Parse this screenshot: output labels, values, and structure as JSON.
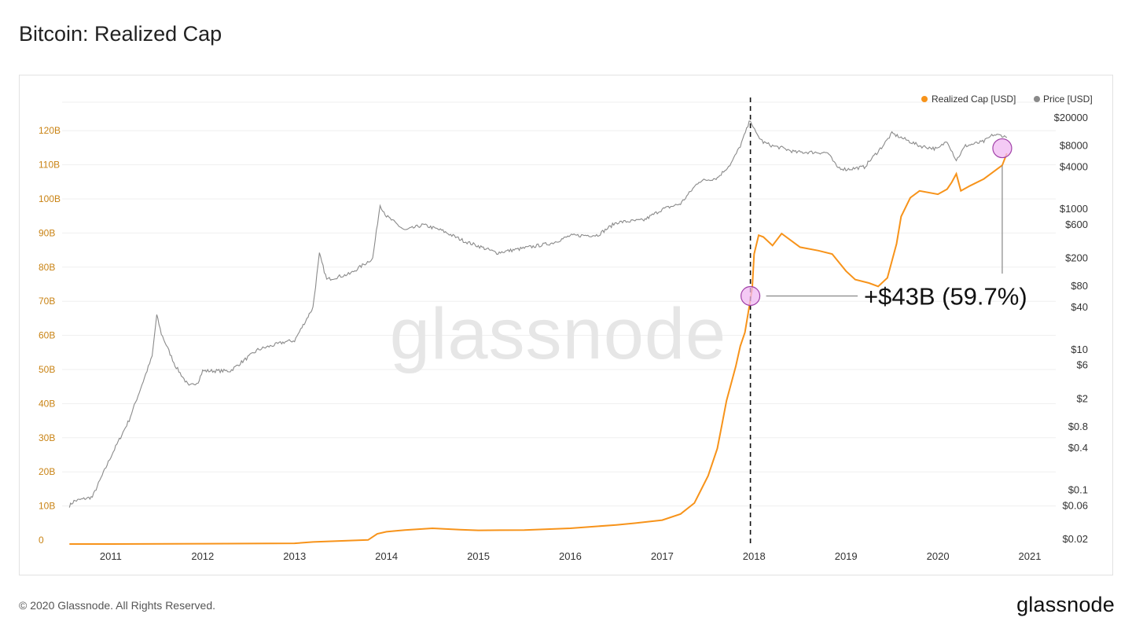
{
  "header": {
    "title": "Bitcoin: Realized Cap"
  },
  "footer": {
    "copyright": "© 2020 Glassnode. All Rights Reserved.",
    "logo": "glassnode"
  },
  "watermark": "glassnode",
  "annotation": {
    "text": "+$43B (59.7%)"
  },
  "colors": {
    "realized": "#f7931a",
    "price": "#8a8a8a",
    "marker_fill": "#f0b8f2",
    "marker_stroke": "#a040a8",
    "left_axis_text": "#c98314"
  },
  "icons": [
    "legend-dot-icon",
    "circle-marker-icon"
  ],
  "chart_data": {
    "type": "line",
    "title": "Bitcoin: Realized Cap",
    "legend": {
      "placement": "top-right",
      "entries": [
        "Realized Cap [USD]",
        "Price [USD]"
      ]
    },
    "x_ticks": [
      "2011",
      "2012",
      "2013",
      "2014",
      "2015",
      "2016",
      "2017",
      "2018",
      "2019",
      "2020",
      "2021"
    ],
    "y_left": {
      "ticks": [
        "0",
        "10B",
        "20B",
        "30B",
        "40B",
        "50B",
        "60B",
        "70B",
        "80B",
        "90B",
        "100B",
        "110B",
        "120B"
      ],
      "range": [
        0,
        130
      ]
    },
    "y_right": {
      "scale": "log",
      "ticks": [
        "$20000",
        "$8000",
        "$4000",
        "$1000",
        "$600",
        "$200",
        "$80",
        "$40",
        "$10",
        "$6",
        "$2",
        "$0.8",
        "$0.4",
        "$0.1",
        "$0.06",
        "$0.02"
      ]
    },
    "event_line": {
      "x": 2017.96,
      "style": "dashed"
    },
    "markers": [
      {
        "x": 2017.96,
        "y": 72.7
      },
      {
        "x": 2020.7,
        "y": 116.0
      }
    ],
    "series": [
      {
        "name": "Realized Cap [USD]",
        "axis": "left",
        "unit": "B USD",
        "x": [
          2010.55,
          2011.0,
          2012.0,
          2013.0,
          2013.2,
          2013.8,
          2013.9,
          2014.0,
          2014.2,
          2014.5,
          2014.8,
          2015.0,
          2015.5,
          2016.0,
          2016.5,
          2016.7,
          2017.0,
          2017.2,
          2017.35,
          2017.5,
          2017.6,
          2017.65,
          2017.7,
          2017.8,
          2017.85,
          2017.9,
          2017.95,
          2017.98,
          2018.0,
          2018.05,
          2018.1,
          2018.2,
          2018.3,
          2018.5,
          2018.7,
          2018.85,
          2019.0,
          2019.1,
          2019.25,
          2019.35,
          2019.45,
          2019.55,
          2019.6,
          2019.7,
          2019.8,
          2020.0,
          2020.1,
          2020.15,
          2020.2,
          2020.25,
          2020.35,
          2020.5,
          2020.6,
          2020.7,
          2020.75
        ],
        "y": [
          0,
          0,
          0.1,
          0.2,
          0.6,
          1.2,
          3.0,
          3.6,
          4.1,
          4.6,
          4.2,
          4.0,
          4.1,
          4.6,
          5.6,
          6.1,
          7.0,
          8.8,
          12.0,
          20.0,
          28.0,
          35.0,
          42.0,
          52.0,
          58.0,
          62.0,
          70.0,
          75.0,
          85.0,
          90.5,
          90.0,
          87.5,
          91.0,
          87.0,
          86.0,
          85.0,
          80.0,
          77.5,
          76.5,
          75.5,
          78.0,
          88.0,
          96.0,
          101.5,
          103.5,
          102.5,
          104.0,
          106.0,
          108.5,
          103.5,
          105.0,
          107.0,
          109.0,
          111.0,
          114.5
        ]
      },
      {
        "name": "Price [USD]",
        "axis": "right",
        "unit": "USD",
        "x": [
          2010.55,
          2010.6,
          2010.8,
          2011.0,
          2011.2,
          2011.45,
          2011.5,
          2011.55,
          2011.7,
          2011.85,
          2011.95,
          2012.0,
          2012.3,
          2012.6,
          2012.9,
          2013.0,
          2013.2,
          2013.27,
          2013.35,
          2013.6,
          2013.85,
          2013.93,
          2014.0,
          2014.2,
          2014.4,
          2014.6,
          2014.85,
          2015.0,
          2015.2,
          2015.5,
          2015.8,
          2016.0,
          2016.3,
          2016.5,
          2016.8,
          2017.0,
          2017.2,
          2017.4,
          2017.6,
          2017.75,
          2017.85,
          2017.96,
          2018.02,
          2018.1,
          2018.2,
          2018.3,
          2018.45,
          2018.6,
          2018.8,
          2018.9,
          2019.0,
          2019.2,
          2019.4,
          2019.5,
          2019.6,
          2019.8,
          2020.0,
          2020.1,
          2020.2,
          2020.3,
          2020.5,
          2020.6,
          2020.7,
          2020.75
        ],
        "y": [
          0.06,
          0.07,
          0.08,
          0.3,
          1.0,
          8.0,
          31.0,
          17.0,
          6.0,
          3.0,
          3.5,
          5.0,
          5.0,
          10.0,
          13.0,
          13.5,
          40.0,
          230.0,
          100.0,
          120.0,
          200.0,
          1150.0,
          800.0,
          500.0,
          600.0,
          500.0,
          350.0,
          300.0,
          240.0,
          280.0,
          330.0,
          420.0,
          430.0,
          650.0,
          700.0,
          1000.0,
          1200.0,
          2500.0,
          2800.0,
          4500.0,
          8000.0,
          19000.0,
          12000.0,
          9000.0,
          8000.0,
          7500.0,
          6500.0,
          6500.0,
          6400.0,
          4000.0,
          3700.0,
          4000.0,
          8000.0,
          12000.0,
          10500.0,
          8000.0,
          7200.0,
          9500.0,
          5000.0,
          8000.0,
          9200.0,
          11500.0,
          11200.0,
          10500.0
        ]
      }
    ]
  }
}
